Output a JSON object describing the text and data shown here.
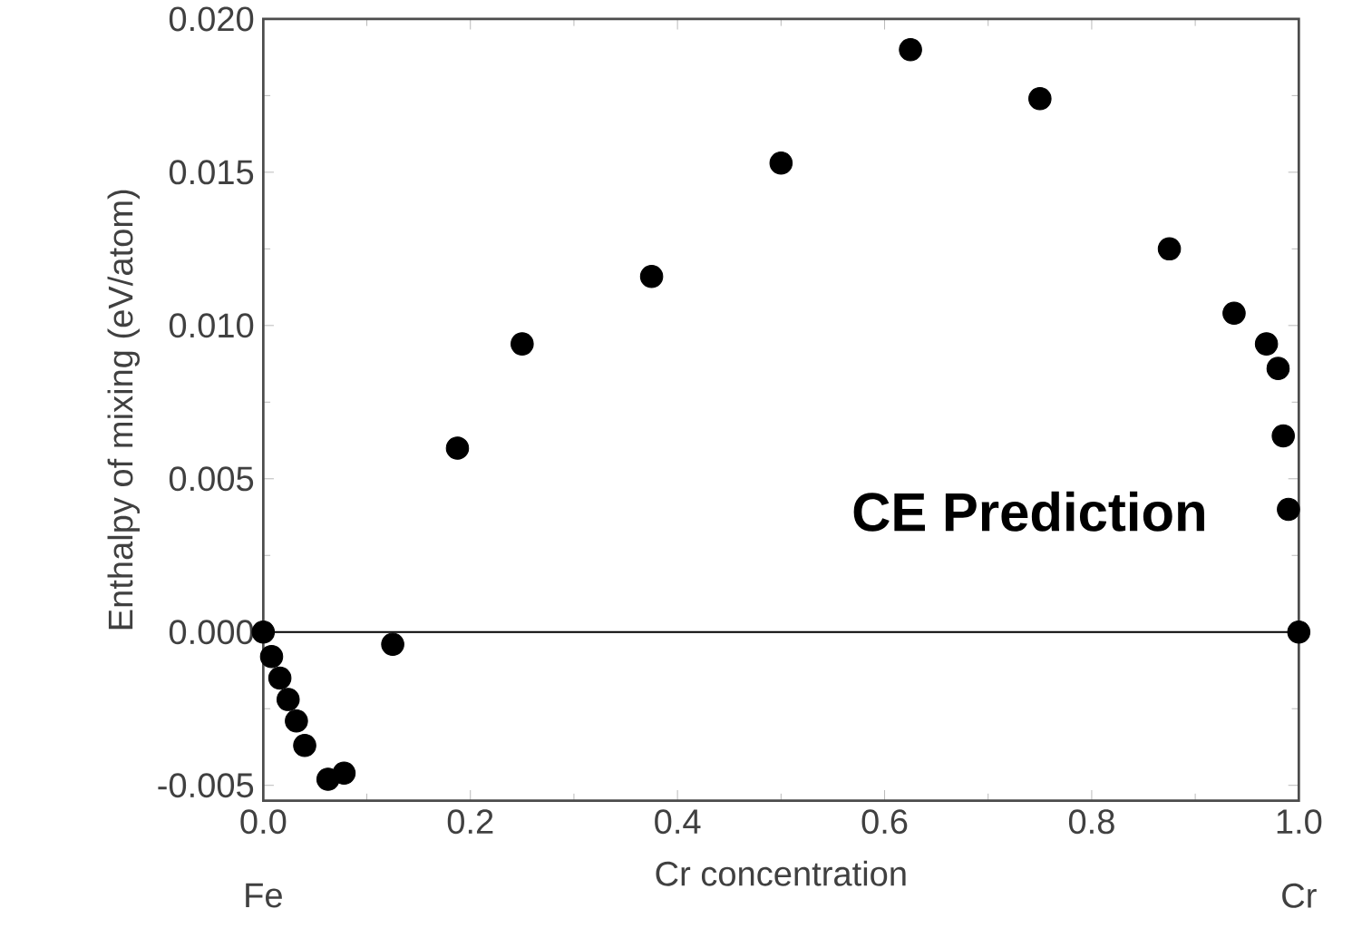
{
  "chart_data": {
    "type": "scatter",
    "xlabel": "Cr concentration",
    "ylabel": "Enthalpy of mixing (eV/atom)",
    "x": [
      0.0,
      0.008,
      0.016,
      0.024,
      0.032,
      0.04,
      0.0625,
      0.078,
      0.125,
      0.1875,
      0.25,
      0.375,
      0.5,
      0.625,
      0.75,
      0.875,
      0.9375,
      0.96875,
      0.98,
      0.985,
      0.99,
      1.0
    ],
    "values": [
      0.0,
      -0.0008,
      -0.0015,
      -0.0022,
      -0.0029,
      -0.0037,
      -0.0048,
      -0.0046,
      -0.0004,
      0.006,
      0.0094,
      0.0116,
      0.0153,
      0.019,
      0.0174,
      0.0125,
      0.0104,
      0.0094,
      0.0086,
      0.0064,
      0.004,
      0.0
    ],
    "color": "#000000",
    "marker": "circle",
    "xlim": [
      0.0,
      1.0
    ],
    "ylim": [
      -0.0055,
      0.02
    ],
    "xticks": [
      {
        "value": 0,
        "label": "0.0"
      },
      0.2,
      0.4,
      0.6,
      0.8,
      {
        "value": 1,
        "label": "1.0"
      }
    ],
    "yticks": [
      {
        "value": -0.005,
        "label": "-0.005"
      },
      {
        "value": 0,
        "label": "0.000"
      },
      {
        "value": 0.005,
        "label": "0.005"
      },
      {
        "value": 0.01,
        "label": "0.010"
      },
      {
        "value": 0.015,
        "label": "0.015"
      },
      {
        "value": 0.02,
        "label": "0.020"
      }
    ],
    "ref_lines": [
      {
        "axis": "y",
        "value": 0,
        "color": "#000000"
      }
    ],
    "annotations": [
      "CE Prediction",
      "Fe",
      "Cr"
    ]
  }
}
